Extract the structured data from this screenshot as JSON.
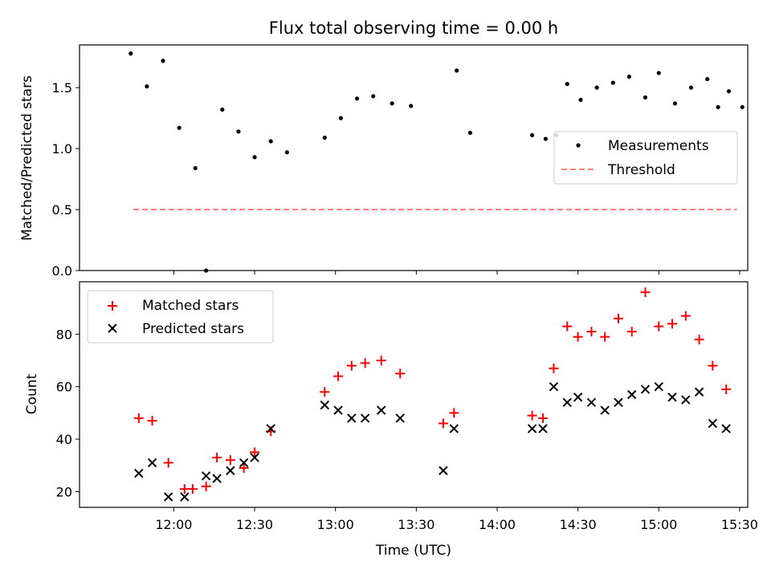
{
  "figure": {
    "title": "Flux total observing time = 0.00 h",
    "xlabel": "Time (UTC)"
  },
  "chart_data": [
    {
      "type": "scatter",
      "panel": "top",
      "ylabel": "Matched/Predicted stars",
      "xlim": [
        "11:25",
        "15:33"
      ],
      "ylim": [
        0,
        1.85
      ],
      "yticks": [
        "0.0",
        "0.5",
        "1.0",
        "1.5"
      ],
      "legend_position": "center-right",
      "series": [
        {
          "name": "Measurements",
          "marker": "dot",
          "color": "#000000",
          "points": [
            {
              "x": "11:44",
              "y": 1.78
            },
            {
              "x": "11:50",
              "y": 1.51
            },
            {
              "x": "11:56",
              "y": 1.72
            },
            {
              "x": "12:02",
              "y": 1.17
            },
            {
              "x": "12:08",
              "y": 0.84
            },
            {
              "x": "12:12",
              "y": 0.0
            },
            {
              "x": "12:18",
              "y": 1.32
            },
            {
              "x": "12:24",
              "y": 1.14
            },
            {
              "x": "12:30",
              "y": 0.93
            },
            {
              "x": "12:36",
              "y": 1.06
            },
            {
              "x": "12:42",
              "y": 0.97
            },
            {
              "x": "12:56",
              "y": 1.09
            },
            {
              "x": "13:02",
              "y": 1.25
            },
            {
              "x": "13:08",
              "y": 1.41
            },
            {
              "x": "13:14",
              "y": 1.43
            },
            {
              "x": "13:21",
              "y": 1.37
            },
            {
              "x": "13:28",
              "y": 1.35
            },
            {
              "x": "13:45",
              "y": 1.64
            },
            {
              "x": "13:50",
              "y": 1.13
            },
            {
              "x": "14:13",
              "y": 1.11
            },
            {
              "x": "14:18",
              "y": 1.08
            },
            {
              "x": "14:22",
              "y": 1.11
            },
            {
              "x": "14:26",
              "y": 1.53
            },
            {
              "x": "14:31",
              "y": 1.4
            },
            {
              "x": "14:37",
              "y": 1.5
            },
            {
              "x": "14:43",
              "y": 1.54
            },
            {
              "x": "14:49",
              "y": 1.59
            },
            {
              "x": "14:55",
              "y": 1.42
            },
            {
              "x": "15:00",
              "y": 1.62
            },
            {
              "x": "15:06",
              "y": 1.37
            },
            {
              "x": "15:12",
              "y": 1.5
            },
            {
              "x": "15:18",
              "y": 1.57
            },
            {
              "x": "15:22",
              "y": 1.34
            },
            {
              "x": "15:26",
              "y": 1.47
            },
            {
              "x": "15:31",
              "y": 1.34
            }
          ]
        },
        {
          "name": "Threshold",
          "style": "dashed",
          "color": "#ff7f7f",
          "points": [
            {
              "x": "11:45",
              "y": 0.5
            },
            {
              "x": "15:29",
              "y": 0.5
            }
          ]
        }
      ]
    },
    {
      "type": "scatter",
      "panel": "bottom",
      "ylabel": "Count",
      "xlabel": "Time (UTC)",
      "xlim": [
        "11:25",
        "15:33"
      ],
      "ylim": [
        14,
        100
      ],
      "yticks": [
        "20",
        "40",
        "60",
        "80"
      ],
      "xticks": [
        "12:00",
        "12:30",
        "13:00",
        "13:30",
        "14:00",
        "14:30",
        "15:00",
        "15:30"
      ],
      "legend_position": "top-left",
      "series": [
        {
          "name": "Matched stars",
          "marker": "plus",
          "color": "#ff0000",
          "points": [
            {
              "x": "11:47",
              "y": 48
            },
            {
              "x": "11:52",
              "y": 47
            },
            {
              "x": "11:58",
              "y": 31
            },
            {
              "x": "12:04",
              "y": 21
            },
            {
              "x": "12:07",
              "y": 21
            },
            {
              "x": "12:12",
              "y": 22
            },
            {
              "x": "12:16",
              "y": 33
            },
            {
              "x": "12:21",
              "y": 32
            },
            {
              "x": "12:26",
              "y": 29
            },
            {
              "x": "12:30",
              "y": 35
            },
            {
              "x": "12:36",
              "y": 43
            },
            {
              "x": "12:56",
              "y": 58
            },
            {
              "x": "13:01",
              "y": 64
            },
            {
              "x": "13:06",
              "y": 68
            },
            {
              "x": "13:11",
              "y": 69
            },
            {
              "x": "13:17",
              "y": 70
            },
            {
              "x": "13:24",
              "y": 65
            },
            {
              "x": "13:40",
              "y": 46
            },
            {
              "x": "13:44",
              "y": 50
            },
            {
              "x": "14:13",
              "y": 49
            },
            {
              "x": "14:17",
              "y": 48
            },
            {
              "x": "14:21",
              "y": 67
            },
            {
              "x": "14:26",
              "y": 83
            },
            {
              "x": "14:30",
              "y": 79
            },
            {
              "x": "14:35",
              "y": 81
            },
            {
              "x": "14:40",
              "y": 79
            },
            {
              "x": "14:45",
              "y": 86
            },
            {
              "x": "14:50",
              "y": 81
            },
            {
              "x": "14:55",
              "y": 96
            },
            {
              "x": "15:00",
              "y": 83
            },
            {
              "x": "15:05",
              "y": 84
            },
            {
              "x": "15:10",
              "y": 87
            },
            {
              "x": "15:15",
              "y": 78
            },
            {
              "x": "15:20",
              "y": 68
            },
            {
              "x": "15:25",
              "y": 59
            }
          ]
        },
        {
          "name": "Predicted stars",
          "marker": "x",
          "color": "#000000",
          "points": [
            {
              "x": "11:47",
              "y": 27
            },
            {
              "x": "11:52",
              "y": 31
            },
            {
              "x": "11:58",
              "y": 18
            },
            {
              "x": "12:04",
              "y": 18
            },
            {
              "x": "12:12",
              "y": 26
            },
            {
              "x": "12:16",
              "y": 25
            },
            {
              "x": "12:21",
              "y": 28
            },
            {
              "x": "12:26",
              "y": 31
            },
            {
              "x": "12:30",
              "y": 33
            },
            {
              "x": "12:36",
              "y": 44
            },
            {
              "x": "12:56",
              "y": 53
            },
            {
              "x": "13:01",
              "y": 51
            },
            {
              "x": "13:06",
              "y": 48
            },
            {
              "x": "13:11",
              "y": 48
            },
            {
              "x": "13:17",
              "y": 51
            },
            {
              "x": "13:24",
              "y": 48
            },
            {
              "x": "13:40",
              "y": 28
            },
            {
              "x": "13:44",
              "y": 44
            },
            {
              "x": "14:13",
              "y": 44
            },
            {
              "x": "14:17",
              "y": 44
            },
            {
              "x": "14:21",
              "y": 60
            },
            {
              "x": "14:26",
              "y": 54
            },
            {
              "x": "14:30",
              "y": 56
            },
            {
              "x": "14:35",
              "y": 54
            },
            {
              "x": "14:40",
              "y": 51
            },
            {
              "x": "14:45",
              "y": 54
            },
            {
              "x": "14:50",
              "y": 57
            },
            {
              "x": "14:55",
              "y": 59
            },
            {
              "x": "15:00",
              "y": 60
            },
            {
              "x": "15:05",
              "y": 56
            },
            {
              "x": "15:10",
              "y": 55
            },
            {
              "x": "15:15",
              "y": 58
            },
            {
              "x": "15:20",
              "y": 46
            },
            {
              "x": "15:25",
              "y": 44
            }
          ]
        }
      ]
    }
  ]
}
